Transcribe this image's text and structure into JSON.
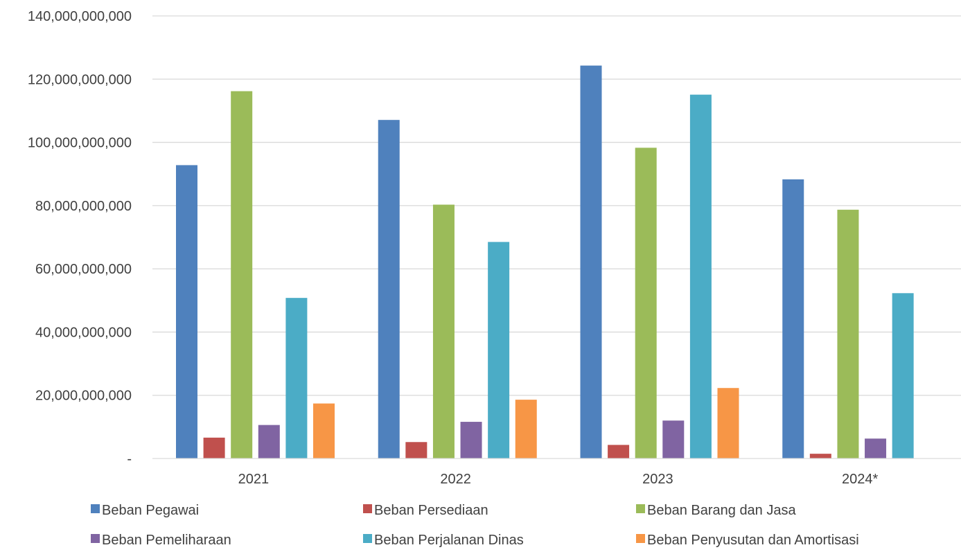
{
  "chart_data": {
    "type": "bar",
    "title": "",
    "xlabel": "",
    "ylabel": "",
    "ylim": [
      0,
      140000000000
    ],
    "y_ticks": [
      {
        "value": 0,
        "label": "-"
      },
      {
        "value": 20000000000,
        "label": "20,000,000,000"
      },
      {
        "value": 40000000000,
        "label": "40,000,000,000"
      },
      {
        "value": 60000000000,
        "label": "60,000,000,000"
      },
      {
        "value": 80000000000,
        "label": "80,000,000,000"
      },
      {
        "value": 100000000000,
        "label": "100,000,000,000"
      },
      {
        "value": 120000000000,
        "label": "120,000,000,000"
      },
      {
        "value": 140000000000,
        "label": "140,000,000,000"
      }
    ],
    "grid": true,
    "legend_position": "bottom",
    "categories": [
      "2021",
      "2022",
      "2023",
      "2024*"
    ],
    "series": [
      {
        "name": "Beban Pegawai",
        "color": "#4F81BD",
        "values": [
          92800000000,
          107100000000,
          124300000000,
          88300000000
        ]
      },
      {
        "name": "Beban Persediaan",
        "color": "#C0504D",
        "values": [
          6600000000,
          5200000000,
          4300000000,
          1500000000
        ]
      },
      {
        "name": "Beban Barang dan Jasa",
        "color": "#9BBB59",
        "values": [
          116200000000,
          80300000000,
          98300000000,
          78700000000
        ]
      },
      {
        "name": "Beban Pemeliharaan",
        "color": "#8064A2",
        "values": [
          10600000000,
          11600000000,
          12000000000,
          6300000000
        ]
      },
      {
        "name": "Beban Perjalanan Dinas",
        "color": "#4BACC6",
        "values": [
          50800000000,
          68500000000,
          115100000000,
          52300000000
        ]
      },
      {
        "name": "Beban Penyusutan dan Amortisasi",
        "color": "#F79646",
        "values": [
          17400000000,
          18600000000,
          22300000000,
          null
        ]
      }
    ]
  }
}
